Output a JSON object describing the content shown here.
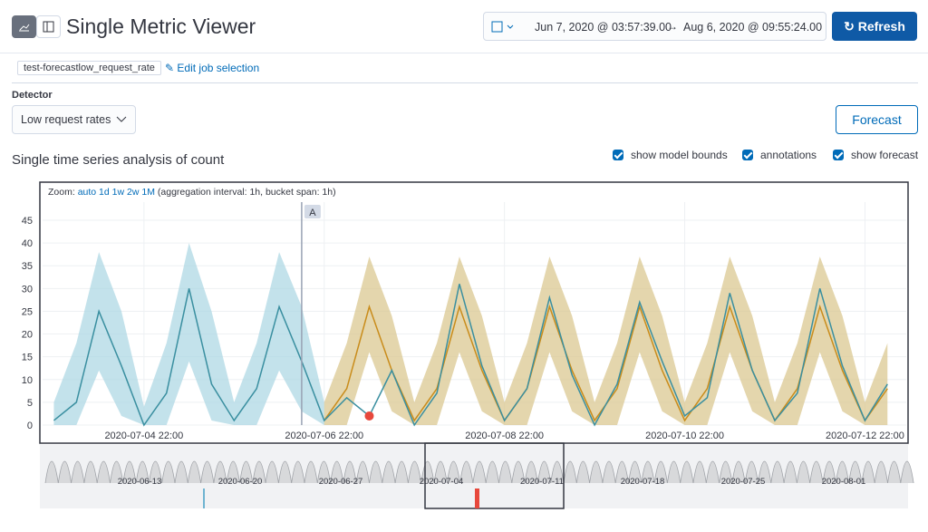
{
  "header": {
    "title": "Single Metric Viewer",
    "date_start": "Jun 7, 2020 @ 03:57:39.00",
    "date_end": "Aug 6, 2020 @ 09:55:24.00",
    "refresh": "Refresh"
  },
  "job": {
    "id": "test-forecastlow_request_rate",
    "edit": "Edit job selection"
  },
  "detector": {
    "label": "Detector",
    "value": "Low request rates"
  },
  "forecast_button": "Forecast",
  "section_title": "Single time series analysis of count",
  "toggles": [
    "show model bounds",
    "annotations",
    "show forecast"
  ],
  "zoom": {
    "label": "Zoom:",
    "options": [
      "auto",
      "1d",
      "1w",
      "2w",
      "1M"
    ],
    "info": "(aggregation interval: 1h, bucket span: 1h)"
  },
  "chart_data": {
    "type": "line",
    "x": [
      "2020-07-03 22:00",
      "2020-07-04 04:00",
      "2020-07-04 10:00",
      "2020-07-04 16:00",
      "2020-07-04 22:00",
      "2020-07-05 04:00",
      "2020-07-05 10:00",
      "2020-07-05 16:00",
      "2020-07-05 22:00",
      "2020-07-06 04:00",
      "2020-07-06 10:00",
      "2020-07-06 16:00",
      "2020-07-06 22:00",
      "2020-07-07 04:00",
      "2020-07-07 10:00",
      "2020-07-07 16:00",
      "2020-07-07 22:00",
      "2020-07-08 04:00",
      "2020-07-08 10:00",
      "2020-07-08 16:00",
      "2020-07-08 22:00",
      "2020-07-09 04:00",
      "2020-07-09 10:00",
      "2020-07-09 16:00",
      "2020-07-09 22:00",
      "2020-07-10 04:00",
      "2020-07-10 10:00",
      "2020-07-10 16:00",
      "2020-07-10 22:00",
      "2020-07-11 04:00",
      "2020-07-11 10:00",
      "2020-07-11 16:00",
      "2020-07-11 22:00",
      "2020-07-12 04:00",
      "2020-07-12 10:00",
      "2020-07-12 16:00",
      "2020-07-12 22:00",
      "2020-07-13 04:00"
    ],
    "actual": {
      "color": "#3a8fa0",
      "values": [
        1,
        5,
        25,
        13,
        0,
        7,
        30,
        9,
        1,
        8,
        26,
        14,
        1,
        6,
        2,
        12,
        0,
        7,
        31,
        13,
        1,
        8,
        28,
        11,
        0,
        9,
        27,
        14,
        2,
        6,
        29,
        12,
        1,
        7,
        30,
        13,
        1,
        9
      ]
    },
    "model_bounds": {
      "color": "#a9d6e2",
      "upper": [
        5,
        18,
        38,
        25,
        4,
        18,
        40,
        25,
        5,
        18,
        38,
        26,
        5,
        null,
        null,
        null,
        null,
        null,
        null,
        null,
        null,
        null,
        null,
        null,
        null,
        null,
        null,
        null,
        null,
        null,
        null,
        null,
        null,
        null,
        null,
        null,
        null,
        null
      ],
      "lower": [
        0,
        0,
        12,
        2,
        0,
        0,
        14,
        1,
        0,
        0,
        12,
        3,
        0,
        null,
        null,
        null,
        null,
        null,
        null,
        null,
        null,
        null,
        null,
        null,
        null,
        null,
        null,
        null,
        null,
        null,
        null,
        null,
        null,
        null,
        null,
        null,
        null,
        null
      ]
    },
    "forecast": {
      "color": "#c98c1b",
      "band_color": "#d9c48a",
      "values": [
        null,
        null,
        null,
        null,
        null,
        null,
        null,
        null,
        null,
        null,
        null,
        null,
        1,
        8,
        26,
        12,
        1,
        8,
        26,
        12,
        1,
        8,
        26,
        12,
        1,
        8,
        26,
        12,
        1,
        8,
        26,
        12,
        1,
        8,
        26,
        12,
        1,
        8
      ],
      "upper": [
        null,
        null,
        null,
        null,
        null,
        null,
        null,
        null,
        null,
        null,
        null,
        null,
        5,
        18,
        37,
        24,
        5,
        18,
        37,
        24,
        5,
        18,
        37,
        24,
        5,
        18,
        37,
        24,
        5,
        18,
        37,
        24,
        5,
        18,
        37,
        24,
        5,
        18
      ],
      "lower": [
        null,
        null,
        null,
        null,
        null,
        null,
        null,
        null,
        null,
        null,
        null,
        null,
        0,
        0,
        16,
        3,
        0,
        0,
        16,
        3,
        0,
        0,
        16,
        3,
        0,
        0,
        16,
        3,
        0,
        0,
        16,
        3,
        0,
        0,
        16,
        3,
        0,
        0
      ]
    },
    "anomaly": {
      "x": "2020-07-07 10:00",
      "value": 2,
      "color": "#e7483c"
    },
    "annotation": {
      "label": "A",
      "x": "2020-07-06 16:00"
    },
    "xlim": [
      "2020-07-03 19:00",
      "2020-07-13 09:00"
    ],
    "xticks": [
      "2020-07-04 22:00",
      "2020-07-06 22:00",
      "2020-07-08 22:00",
      "2020-07-10 22:00",
      "2020-07-12 22:00"
    ],
    "ylim": [
      0,
      45
    ],
    "yticks": [
      0,
      5,
      10,
      15,
      20,
      25,
      30,
      35,
      40,
      45
    ],
    "grid": true
  },
  "context": {
    "labels": [
      "2020-06-13",
      "2020-06-20",
      "2020-06-27",
      "2020-07-04",
      "2020-07-11",
      "2020-07-18",
      "2020-07-25",
      "2020-08-01"
    ]
  }
}
